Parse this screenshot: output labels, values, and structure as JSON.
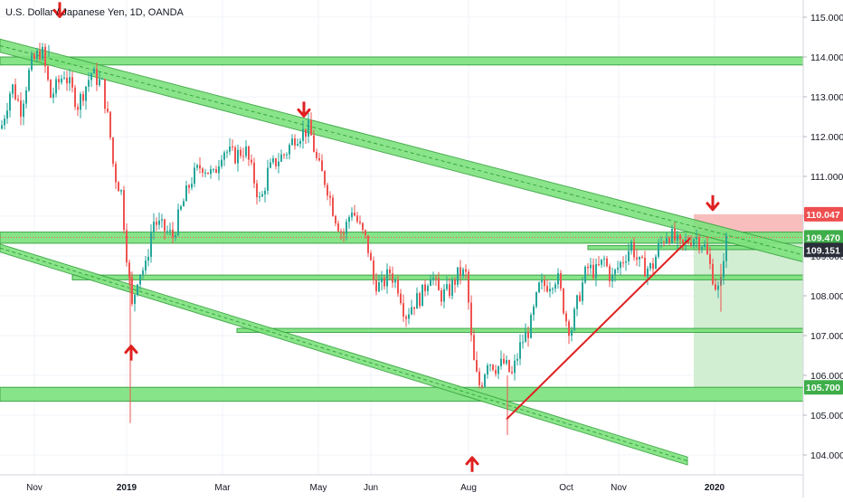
{
  "header": {
    "title": "U.S. Dollar / Japanese Yen, 1D, OANDA"
  },
  "colors": {
    "up": "#26a69a",
    "down": "#ef5350",
    "zone_fill": "#7ee27e",
    "zone_stroke": "#2e9e3a",
    "channel": "#37a63f",
    "trend": "#e02020",
    "arrow": "#e02020",
    "tag_red": "#ef4f4f",
    "tag_green": "#3fae4a",
    "tag_dark": "#2a2e39",
    "grid": "#f0f3fa",
    "axis_text": "#131722"
  },
  "chart_data": {
    "type": "candlestick",
    "title": "U.S. Dollar / Japanese Yen, 1D, OANDA",
    "x_ticks": [
      "Nov",
      "2019",
      "Mar",
      "May",
      "Jun",
      "Aug",
      "Oct",
      "Nov",
      "2020"
    ],
    "y_ticks": [
      "115.000",
      "114.000",
      "113.000",
      "112.000",
      "111.000",
      "110.000",
      "109.000",
      "108.000",
      "107.000",
      "106.000",
      "105.000",
      "104.000"
    ],
    "ylim": [
      103.55,
      115.25
    ],
    "price_path": [
      [
        0,
        112.2
      ],
      [
        12,
        113.3
      ],
      [
        22,
        112.7
      ],
      [
        33,
        113.8
      ],
      [
        45,
        114.2
      ],
      [
        55,
        113.0
      ],
      [
        70,
        113.6
      ],
      [
        85,
        112.8
      ],
      [
        100,
        113.6
      ],
      [
        112,
        113.3
      ],
      [
        120,
        112.2
      ],
      [
        125,
        111.1
      ],
      [
        133,
        110.6
      ],
      [
        140,
        108.8
      ],
      [
        145,
        107.7
      ],
      [
        152,
        108.6
      ],
      [
        160,
        108.7
      ],
      [
        168,
        109.9
      ],
      [
        178,
        109.7
      ],
      [
        190,
        109.5
      ],
      [
        198,
        110.1
      ],
      [
        210,
        110.9
      ],
      [
        222,
        111.3
      ],
      [
        235,
        111.0
      ],
      [
        245,
        111.7
      ],
      [
        258,
        111.5
      ],
      [
        270,
        111.7
      ],
      [
        280,
        110.9
      ],
      [
        287,
        110.3
      ],
      [
        295,
        111.1
      ],
      [
        305,
        111.4
      ],
      [
        315,
        111.6
      ],
      [
        325,
        112.0
      ],
      [
        333,
        112.1
      ],
      [
        341,
        112.2
      ],
      [
        350,
        111.3
      ],
      [
        360,
        110.8
      ],
      [
        368,
        110.1
      ],
      [
        378,
        109.5
      ],
      [
        388,
        110.2
      ],
      [
        397,
        109.7
      ],
      [
        405,
        109.3
      ],
      [
        412,
        108.4
      ],
      [
        420,
        108.2
      ],
      [
        430,
        108.6
      ],
      [
        440,
        108.2
      ],
      [
        447,
        107.5
      ],
      [
        455,
        107.8
      ],
      [
        465,
        108.0
      ],
      [
        475,
        108.6
      ],
      [
        485,
        108.0
      ],
      [
        495,
        108.1
      ],
      [
        507,
        108.6
      ],
      [
        515,
        108.5
      ],
      [
        519,
        107.1
      ],
      [
        524,
        106.1
      ],
      [
        530,
        105.7
      ],
      [
        538,
        106.4
      ],
      [
        548,
        106.2
      ],
      [
        556,
        106.3
      ],
      [
        565,
        106.0
      ],
      [
        575,
        106.8
      ],
      [
        585,
        107.2
      ],
      [
        595,
        108.2
      ],
      [
        605,
        108.3
      ],
      [
        615,
        108.5
      ],
      [
        625,
        107.4
      ],
      [
        630,
        107.1
      ],
      [
        638,
        107.9
      ],
      [
        648,
        108.7
      ],
      [
        658,
        108.6
      ],
      [
        667,
        108.9
      ],
      [
        675,
        108.4
      ],
      [
        682,
        108.7
      ],
      [
        690,
        109.0
      ],
      [
        697,
        109.3
      ],
      [
        705,
        108.8
      ],
      [
        712,
        108.7
      ],
      [
        720,
        108.7
      ],
      [
        727,
        109.2
      ],
      [
        737,
        109.6
      ],
      [
        745,
        109.4
      ],
      [
        752,
        109.2
      ],
      [
        760,
        109.4
      ],
      [
        767,
        109.5
      ],
      [
        777,
        109.3
      ],
      [
        787,
        108.5
      ],
      [
        792,
        108.1
      ],
      [
        796,
        108.3
      ],
      [
        800,
        109.3
      ],
      [
        803,
        109.4
      ]
    ],
    "horizontal_zones": [
      {
        "x0": 0,
        "x1": 888,
        "y_top": 114.0,
        "y_bot": 113.8
      },
      {
        "x0": 0,
        "x1": 888,
        "y_top": 109.6,
        "y_bot": 109.32
      },
      {
        "x0": 80,
        "x1": 888,
        "y_top": 108.52,
        "y_bot": 108.4
      },
      {
        "x0": 262,
        "x1": 888,
        "y_top": 107.18,
        "y_bot": 107.08
      },
      {
        "x0": 0,
        "x1": 888,
        "y_top": 105.7,
        "y_bot": 105.35
      },
      {
        "x0": 650,
        "x1": 852,
        "y_top": 109.26,
        "y_bot": 109.16
      }
    ],
    "channels": [
      {
        "x0": 0,
        "y0_top": 114.45,
        "y0_bot": 114.12,
        "x1": 888,
        "y1_top": 109.2,
        "y1_bot": 108.85
      },
      {
        "x0": 0,
        "y0_top": 109.3,
        "y0_bot": 109.1,
        "x1": 760,
        "y1_top": 103.95,
        "y1_bot": 103.75
      }
    ],
    "trendline": {
      "from": [
        560,
        104.9
      ],
      "to": [
        763,
        109.45
      ]
    },
    "position_box": {
      "x0": 767,
      "x1": 888,
      "entry": 109.47,
      "target": 105.7,
      "stop": 110.047
    },
    "price_tags": [
      {
        "label": "110.047",
        "value": 110.047,
        "color": "red"
      },
      {
        "label": "109.470",
        "value": 109.47,
        "color": "green"
      },
      {
        "label": "109.151",
        "value": 109.151,
        "color": "dark"
      },
      {
        "label": "105.700",
        "value": 105.7,
        "color": "green"
      }
    ],
    "arrows": [
      {
        "dir": "down",
        "x": 66,
        "value": 115.15
      },
      {
        "dir": "down",
        "x": 336,
        "value": 112.65
      },
      {
        "dir": "down",
        "x": 788,
        "value": 110.3
      },
      {
        "dir": "up",
        "x": 145,
        "value": 106.6
      },
      {
        "dir": "up",
        "x": 522,
        "value": 103.8
      }
    ]
  }
}
